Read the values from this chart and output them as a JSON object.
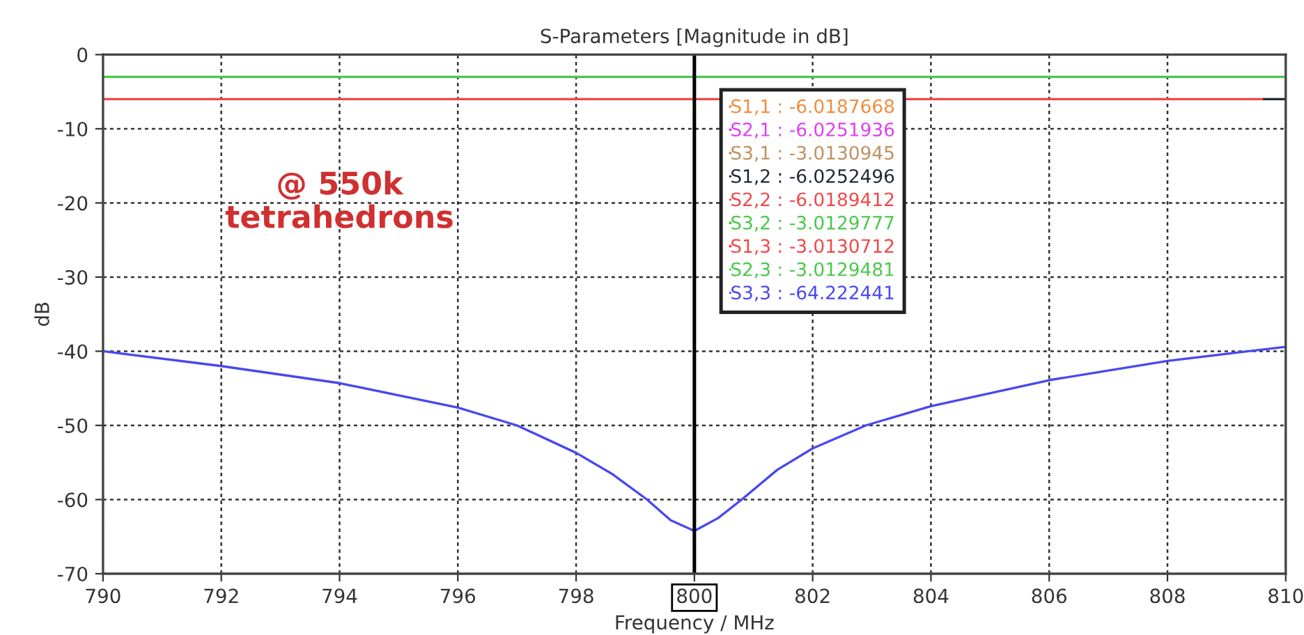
{
  "chart_data": {
    "type": "line",
    "title": "S-Parameters [Magnitude in dB]",
    "xlabel": "Frequency / MHz",
    "ylabel": "dB",
    "xlim": [
      790,
      810
    ],
    "xticks": [
      790,
      792,
      794,
      796,
      798,
      800,
      802,
      804,
      806,
      808,
      810
    ],
    "ylim": [
      -70,
      0
    ],
    "yticks": [
      -70,
      -60,
      -50,
      -40,
      -30,
      -20,
      -10,
      0
    ],
    "grid": true,
    "legend": "top",
    "line_style": "solid",
    "marker": "none",
    "annotations": [
      "@ 550k\ntetrahedrons"
    ],
    "ref_lines": [
      {
        "axis": "x",
        "value": 800,
        "label": null,
        "color": "#000000"
      }
    ],
    "series": [
      {
        "name": "S1,1 : -6.0187668",
        "color": "#f08c3c",
        "values": [
          null
        ]
      },
      {
        "name": "S2,1 : -6.0251936",
        "color": "#e040f0",
        "values": [
          null
        ]
      },
      {
        "name": "S3,1 : -3.0130945",
        "color": "#c09060",
        "values": [
          null
        ]
      },
      {
        "name": "S1,2 : -6.0252496",
        "color": "#202830",
        "x": [
          809.6,
          810
        ],
        "values": [
          -6.0,
          -6.0
        ]
      },
      {
        "name": "S2,2 : -6.0189412",
        "color": "#f04848",
        "x": [
          790,
          809.6
        ],
        "values": [
          -6.0,
          -6.0
        ]
      },
      {
        "name": "S3,2 : -3.0129777",
        "color": "#48c848",
        "values": [
          null
        ]
      },
      {
        "name": "S1,3 : -3.0130712",
        "color": "#f04848",
        "values": [
          null
        ]
      },
      {
        "name": "S2,3 : -3.0129481",
        "color": "#48c848",
        "x": [
          790,
          810
        ],
        "values": [
          -3.0,
          -3.0
        ]
      },
      {
        "name": "S3,3 : -64.222441",
        "color": "#4848f0",
        "x": [
          790,
          792,
          794,
          796,
          797,
          798,
          798.6,
          799.2,
          799.6,
          800,
          800.4,
          800.8,
          801.4,
          802,
          802.9,
          804,
          806,
          808,
          810
        ],
        "values": [
          -40,
          -42,
          -44.3,
          -47.6,
          -50,
          -53.7,
          -56.5,
          -60,
          -62.8,
          -64.222441,
          -62.5,
          -60,
          -56,
          -53.1,
          -50,
          -47.4,
          -43.9,
          -41.3,
          -39.4
        ]
      }
    ]
  }
}
